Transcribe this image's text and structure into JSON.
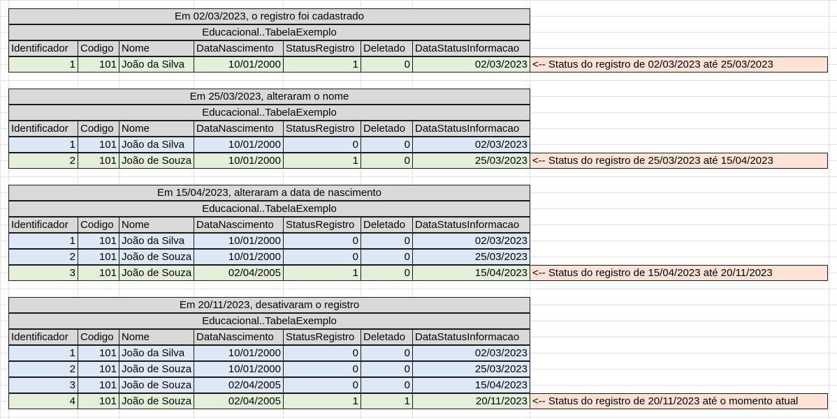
{
  "columns": [
    "Identificador",
    "Codigo",
    "Nome",
    "DataNascimento",
    "StatusRegistro",
    "Deletado",
    "DataStatusInformacao"
  ],
  "table_name": "Educacional..TabelaExemplo",
  "blocks": [
    {
      "title": "Em 02/03/2023, o registro foi cadastrado",
      "rows": [
        {
          "id": "1",
          "codigo": "101",
          "nome": "João da Silva",
          "nascimento": "10/01/2000",
          "status": "1",
          "deletado": "0",
          "data": "02/03/2023",
          "current": true
        }
      ],
      "note": "<-- Status do registro de 02/03/2023 até 25/03/2023"
    },
    {
      "title": "Em 25/03/2023, alteraram o nome",
      "rows": [
        {
          "id": "1",
          "codigo": "101",
          "nome": "João da Silva",
          "nascimento": "10/01/2000",
          "status": "0",
          "deletado": "0",
          "data": "02/03/2023",
          "current": false
        },
        {
          "id": "2",
          "codigo": "101",
          "nome": "João de Souza",
          "nascimento": "10/01/2000",
          "status": "1",
          "deletado": "0",
          "data": "25/03/2023",
          "current": true
        }
      ],
      "note": "<-- Status do registro de 25/03/2023 até 15/04/2023"
    },
    {
      "title": "Em 15/04/2023, alteraram a data de nascimento",
      "rows": [
        {
          "id": "1",
          "codigo": "101",
          "nome": "João da Silva",
          "nascimento": "10/01/2000",
          "status": "0",
          "deletado": "0",
          "data": "02/03/2023",
          "current": false
        },
        {
          "id": "2",
          "codigo": "101",
          "nome": "João de Souza",
          "nascimento": "10/01/2000",
          "status": "0",
          "deletado": "0",
          "data": "25/03/2023",
          "current": false
        },
        {
          "id": "3",
          "codigo": "101",
          "nome": "João de Souza",
          "nascimento": "02/04/2005",
          "status": "1",
          "deletado": "0",
          "data": "15/04/2023",
          "current": true
        }
      ],
      "note": "<-- Status do registro de 15/04/2023 até 20/11/2023"
    },
    {
      "title": "Em 20/11/2023, desativaram o registro",
      "rows": [
        {
          "id": "1",
          "codigo": "101",
          "nome": "João da Silva",
          "nascimento": "10/01/2000",
          "status": "0",
          "deletado": "0",
          "data": "02/03/2023",
          "current": false
        },
        {
          "id": "2",
          "codigo": "101",
          "nome": "João de Souza",
          "nascimento": "10/01/2000",
          "status": "0",
          "deletado": "0",
          "data": "25/03/2023",
          "current": false
        },
        {
          "id": "3",
          "codigo": "101",
          "nome": "João de Souza",
          "nascimento": "02/04/2005",
          "status": "0",
          "deletado": "0",
          "data": "15/04/2023",
          "current": false
        },
        {
          "id": "4",
          "codigo": "101",
          "nome": "João de Souza",
          "nascimento": "02/04/2005",
          "status": "1",
          "deletado": "1",
          "data": "20/11/2023",
          "current": true
        }
      ],
      "note": "<-- Status do registro de 20/11/2023 até o momento atual"
    }
  ]
}
